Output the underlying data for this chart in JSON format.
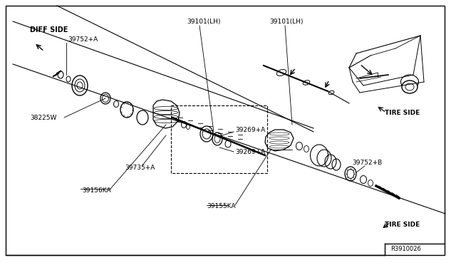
{
  "bg_color": "#ffffff",
  "line_color": "#000000",
  "text_color": "#000000",
  "fig_width": 6.4,
  "fig_height": 3.72,
  "dpi": 100,
  "ref_code": "R3910026",
  "labels": {
    "diff_side": "DIFF SIDE",
    "tire_side_top": "TIRE SIDE",
    "tire_side_bottom": "TIRE SIDE",
    "part_39752A": "39752+A",
    "part_38225W": "38225W",
    "part_39735A": "39735+A",
    "part_39156KA": "39156KA",
    "part_39101LH_1": "39101(LH)",
    "part_39101LH_2": "39101(LH)",
    "part_39269A_1": "39269+A",
    "part_39269A_2": "39269+A",
    "part_39155KA": "39155KA",
    "part_39752B": "39752+B"
  },
  "diag_line": [
    [
      18,
      310
    ],
    [
      430,
      55
    ]
  ],
  "diag_line2": [
    [
      180,
      335
    ],
    [
      625,
      75
    ]
  ],
  "border": [
    8,
    8,
    624,
    358
  ]
}
